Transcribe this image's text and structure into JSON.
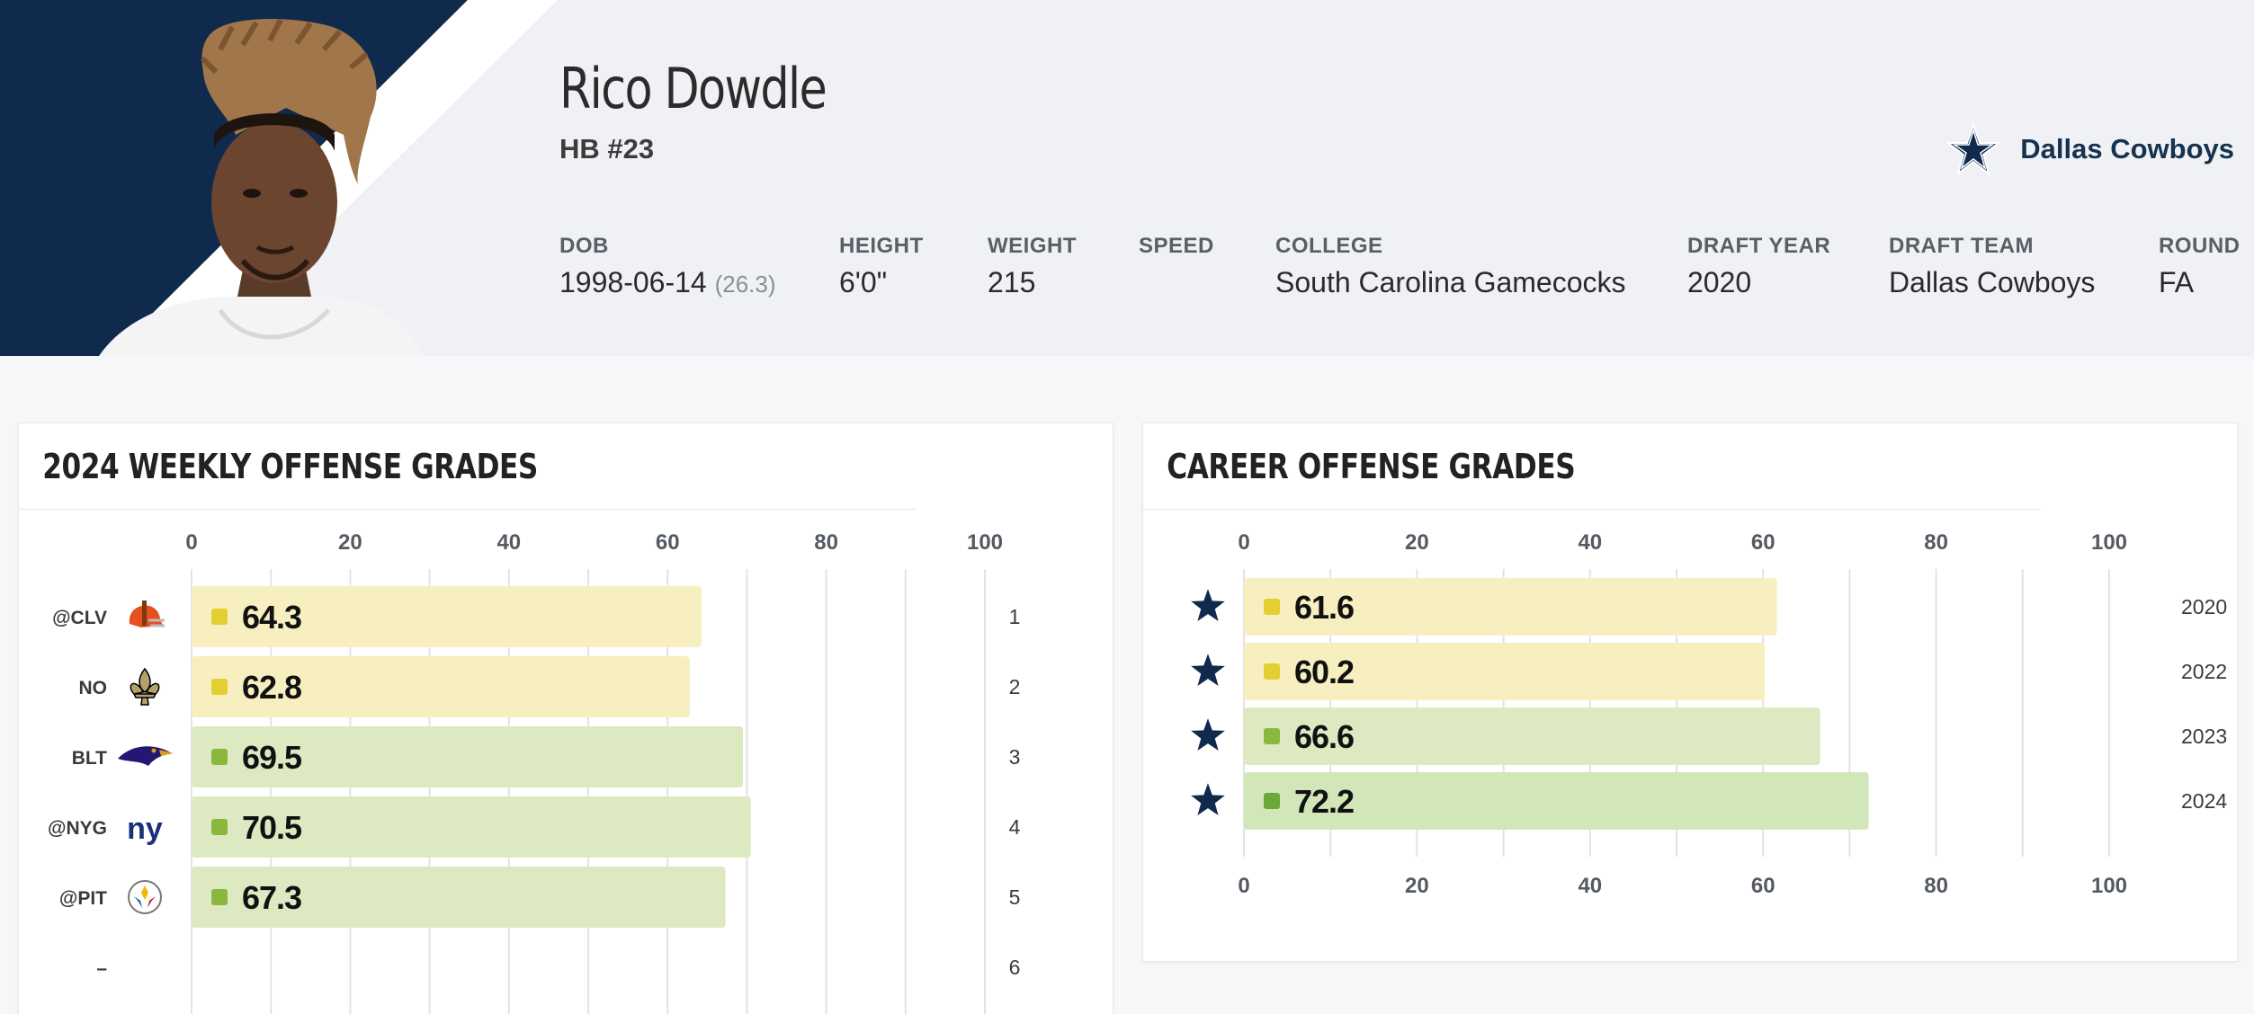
{
  "player": {
    "name": "Rico Dowdle",
    "position": "HB #23",
    "team": "Dallas Cowboys"
  },
  "bio": [
    {
      "label": "DOB",
      "value": "1998-06-14",
      "extra": "(26.3)"
    },
    {
      "label": "HEIGHT",
      "value": "6'0\""
    },
    {
      "label": "WEIGHT",
      "value": "215"
    },
    {
      "label": "SPEED",
      "value": ""
    },
    {
      "label": "COLLEGE",
      "value": "South Carolina Gamecocks"
    },
    {
      "label": "DRAFT YEAR",
      "value": "2020"
    },
    {
      "label": "DRAFT TEAM",
      "value": "Dallas Cowboys"
    },
    {
      "label": "ROUND",
      "value": "FA"
    }
  ],
  "colors": {
    "navy": "#0f2a4d",
    "grade_yellow_bar": "#f8efc0",
    "grade_yellow_dot": "#e3cf33",
    "grade_green_bar": "#dde9c0",
    "grade_green_dot": "#8ab83e",
    "grade_green_bar_strong": "#d2e7b8",
    "grade_green_dot_strong": "#6aa93a"
  },
  "weekly": {
    "title": "2024 WEEKLY OFFENSE GRADES"
  },
  "career": {
    "title": "CAREER OFFENSE GRADES"
  },
  "chart_data": [
    {
      "type": "bar",
      "title": "2024 WEEKLY OFFENSE GRADES",
      "orientation": "horizontal",
      "xlim": [
        0,
        100
      ],
      "ticks": [
        0,
        20,
        40,
        60,
        80,
        100
      ],
      "grid": true,
      "categories": [
        "@CLV",
        "NO",
        "BLT",
        "@NYG",
        "@PIT",
        "–"
      ],
      "opponent_icons": [
        "browns-helmet-icon",
        "saints-fleur-de-lis-icon",
        "ravens-logo-icon",
        "giants-ny-logo-icon",
        "steelers-logo-icon",
        ""
      ],
      "weeks": [
        "1",
        "2",
        "3",
        "4",
        "5",
        "6"
      ],
      "values": [
        64.3,
        62.8,
        69.5,
        70.5,
        67.3,
        null
      ],
      "grade_levels": [
        "yellow",
        "yellow",
        "green",
        "green",
        "green",
        null
      ]
    },
    {
      "type": "bar",
      "title": "CAREER OFFENSE GRADES",
      "orientation": "horizontal",
      "xlim": [
        0,
        100
      ],
      "ticks": [
        0,
        20,
        40,
        60,
        80,
        100
      ],
      "grid": true,
      "categories": [
        "2020",
        "2022",
        "2023",
        "2024"
      ],
      "team_icons": [
        "cowboys-star-icon",
        "cowboys-star-icon",
        "cowboys-star-icon",
        "cowboys-star-icon"
      ],
      "values": [
        61.6,
        60.2,
        66.6,
        72.2
      ],
      "grade_levels": [
        "yellow",
        "yellow",
        "green",
        "green-strong"
      ]
    }
  ]
}
